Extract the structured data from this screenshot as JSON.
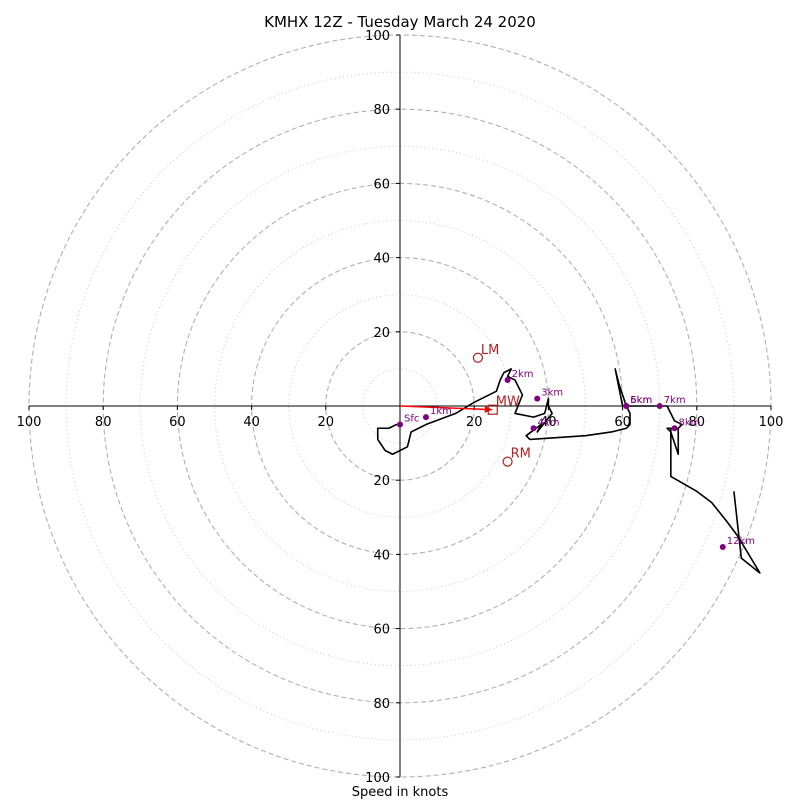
{
  "chart_data": {
    "type": "scatter",
    "title": "KMHX 12Z - Tuesday March 24 2020",
    "xlabel": "Speed in knots",
    "ylabel": "",
    "xlim": [
      -100,
      100
    ],
    "ylim": [
      -100,
      100
    ],
    "tick_labels": [
      "20",
      "40",
      "60",
      "80",
      "100"
    ],
    "ring_values_dashed": [
      20,
      40,
      60,
      80,
      100
    ],
    "ring_values_dotted": [
      10,
      30,
      50,
      70,
      90
    ],
    "grid": true,
    "colors": {
      "hodograph": "#000000",
      "height_markers": "#800080",
      "storm_motion": "#b22222",
      "mean_wind_arrow": "#ff0000",
      "grid_dashed": "#b0b0b0",
      "grid_dotted": "#c8c8c8"
    },
    "hodograph": {
      "u": [
        0,
        -1,
        -3,
        -6,
        -6,
        -4,
        -2,
        2,
        3,
        5,
        7,
        15,
        20,
        26,
        27,
        28,
        30,
        29,
        31,
        33,
        31,
        36,
        39,
        40,
        40,
        40,
        41,
        37,
        38,
        34,
        35,
        50,
        57,
        61,
        62,
        62,
        61,
        59,
        58,
        60,
        61,
        70,
        72,
        74,
        76,
        75,
        75,
        73,
        72,
        73,
        73,
        80,
        84,
        88,
        91,
        97,
        92,
        90
      ],
      "v": [
        -5,
        -5,
        -6,
        -6,
        -9,
        -12,
        -13,
        -11,
        -7,
        -6,
        -5,
        -2,
        1,
        4,
        7,
        9,
        10,
        8,
        7,
        3,
        -2,
        -3,
        -2,
        2,
        2,
        0,
        -2,
        -7,
        -5,
        -8,
        -9,
        -8,
        -7,
        -6,
        -5,
        -2,
        0,
        6,
        10,
        0,
        0,
        0,
        0,
        -4,
        -5,
        -6,
        -13,
        -7,
        -6,
        -6,
        -19,
        -23,
        -26,
        -31,
        -35,
        -45,
        -41,
        -23
      ]
    },
    "height_markers": [
      {
        "label": "Sfc",
        "u": 0,
        "v": -5
      },
      {
        "label": "1km",
        "u": 7,
        "v": -3
      },
      {
        "label": "2km",
        "u": 29,
        "v": 7
      },
      {
        "label": "3km",
        "u": 37,
        "v": 2
      },
      {
        "label": "4km",
        "u": 36,
        "v": -6
      },
      {
        "label": "5km",
        "u": 61,
        "v": 0
      },
      {
        "label": "6km",
        "u": 61,
        "v": 0
      },
      {
        "label": "7km",
        "u": 70,
        "v": 0
      },
      {
        "label": "8km",
        "u": 74,
        "v": -6
      },
      {
        "label": "12km",
        "u": 87,
        "v": -38
      }
    ],
    "storm_motion": [
      {
        "label": "LM",
        "u": 21,
        "v": 13,
        "marker": "circle"
      },
      {
        "label": "RM",
        "u": 29,
        "v": -15,
        "marker": "circle"
      },
      {
        "label": "MW",
        "u": 25,
        "v": -1,
        "marker": "square"
      }
    ],
    "mean_wind_arrow": {
      "from_u": 0,
      "from_v": 0,
      "to_u": 25,
      "to_v": -1
    }
  }
}
